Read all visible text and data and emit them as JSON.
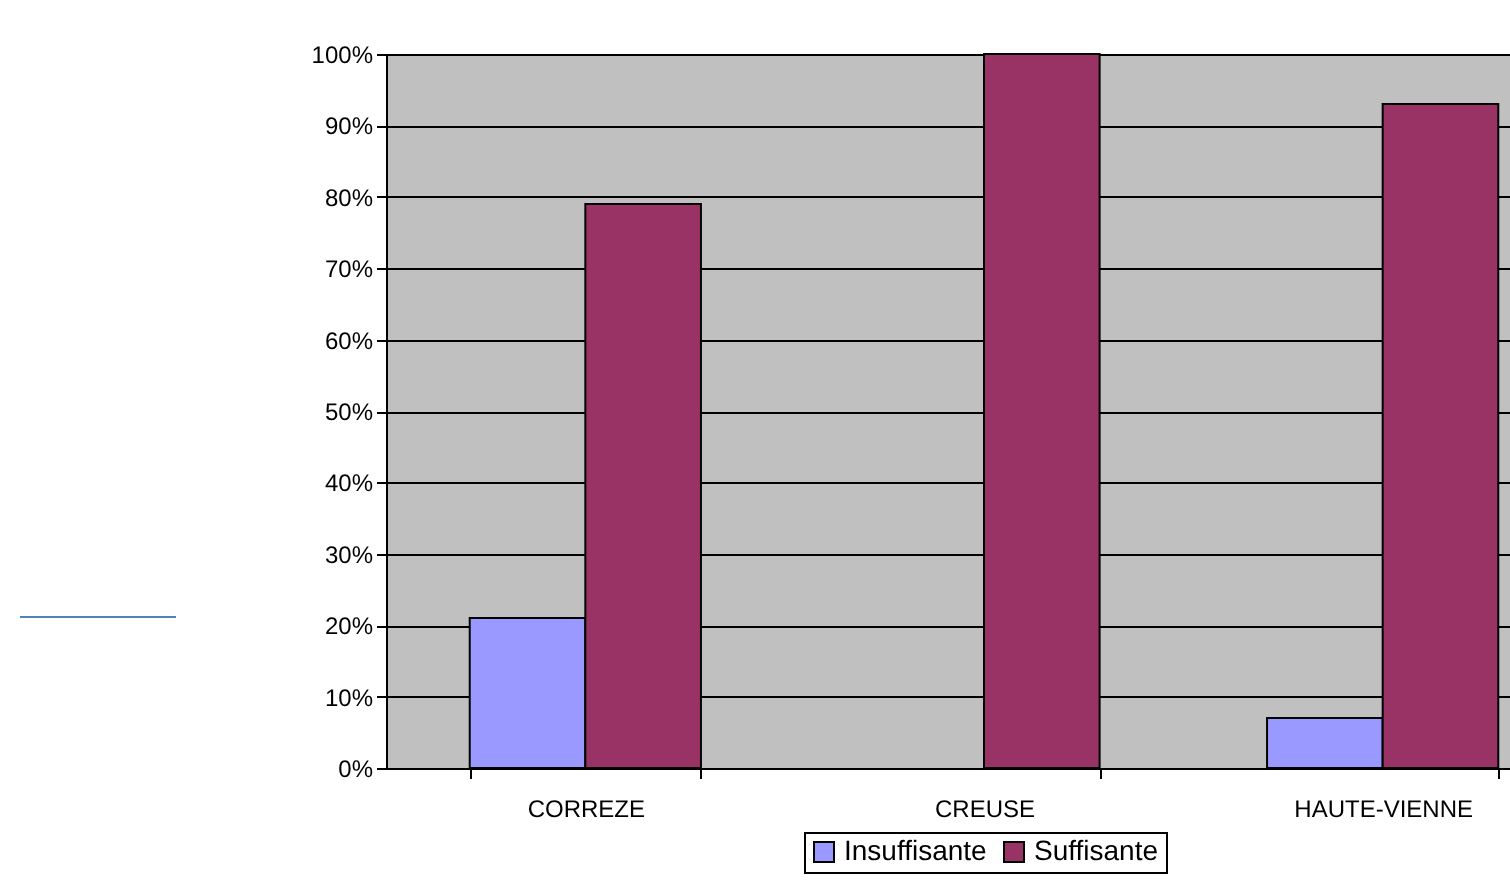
{
  "chart_data": {
    "type": "bar",
    "categories": [
      "CORREZE",
      "CREUSE",
      "HAUTE-VIENNE"
    ],
    "series": [
      {
        "name": "Insuffisante",
        "color": "#9999ff",
        "values": [
          21,
          0,
          7
        ]
      },
      {
        "name": "Suffisante",
        "color": "#993366",
        "values": [
          79,
          100,
          93
        ]
      }
    ],
    "ylim": [
      0,
      100
    ],
    "yticks": [
      {
        "value": 0,
        "label": "0%"
      },
      {
        "value": 10,
        "label": "10%"
      },
      {
        "value": 20,
        "label": "20%"
      },
      {
        "value": 30,
        "label": "30%"
      },
      {
        "value": 40,
        "label": "40%"
      },
      {
        "value": 50,
        "label": "50%"
      },
      {
        "value": 60,
        "label": "60%"
      },
      {
        "value": 70,
        "label": "70%"
      },
      {
        "value": 80,
        "label": "80%"
      },
      {
        "value": 90,
        "label": "90%"
      },
      {
        "value": 100,
        "label": "100%"
      }
    ],
    "grid": "y",
    "legend": "bottom"
  }
}
